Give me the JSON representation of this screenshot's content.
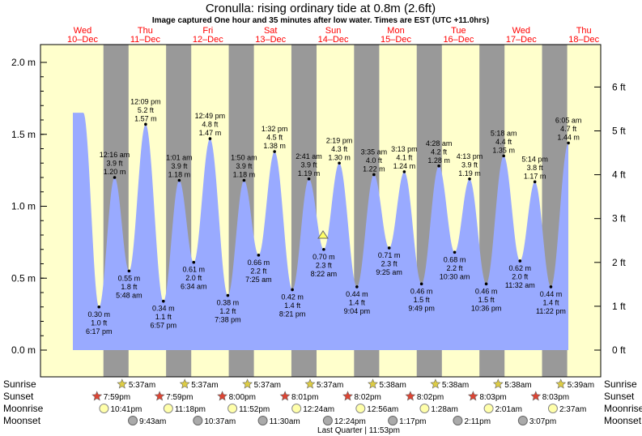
{
  "title": "Cronulla: rising  ordinary tide at 0.8m (2.6ft)",
  "subtitle": "Image captured One hour and 35 minutes after low water. Times are EST (UTC +11.0hrs)",
  "days": [
    {
      "name": "Wed",
      "date": "10–Dec"
    },
    {
      "name": "Thu",
      "date": "11–Dec"
    },
    {
      "name": "Fri",
      "date": "12–Dec"
    },
    {
      "name": "Sat",
      "date": "13–Dec"
    },
    {
      "name": "Sun",
      "date": "14–Dec"
    },
    {
      "name": "Mon",
      "date": "15–Dec"
    },
    {
      "name": "Tue",
      "date": "16–Dec"
    },
    {
      "name": "Wed",
      "date": "17–Dec"
    },
    {
      "name": "Thu",
      "date": "18–Dec"
    }
  ],
  "colors": {
    "day_background": "#ffffcc",
    "night_band": "#999999",
    "water": "#99aaff",
    "day_label": "#ff0000",
    "current_marker": "#ffff66"
  },
  "chart_data": {
    "type": "area",
    "y_left_ticks": [
      "0.0 m",
      "0.5 m",
      "1.0 m",
      "1.5 m",
      "2.0 m"
    ],
    "y_left_values": [
      0,
      0.5,
      1.0,
      1.5,
      2.0
    ],
    "y_right_ticks": [
      "0 ft",
      "1 ft",
      "2 ft",
      "3 ft",
      "4 ft",
      "5 ft",
      "6 ft"
    ],
    "y_right_values_ft": [
      0,
      1,
      2,
      3,
      4,
      5,
      6
    ],
    "ylim_m": [
      -0.1,
      2.1
    ],
    "tide_events": [
      {
        "type": "low",
        "time": "6:17 pm",
        "day": "Wed 10-Dec",
        "m": 0.3,
        "ft": "1.0 ft",
        "label_m": "0.30 m"
      },
      {
        "type": "high",
        "time": "12:16 am",
        "day": "Thu 11-Dec",
        "m": 1.2,
        "ft": "3.9 ft",
        "label_m": "1.20 m"
      },
      {
        "type": "low",
        "time": "5:48 am",
        "day": "Thu 11-Dec",
        "m": 0.55,
        "ft": "1.8 ft",
        "label_m": "0.55 m"
      },
      {
        "type": "high",
        "time": "12:09 pm",
        "day": "Thu 11-Dec",
        "m": 1.57,
        "ft": "5.2 ft",
        "label_m": "1.57 m"
      },
      {
        "type": "low",
        "time": "6:57 pm",
        "day": "Thu 11-Dec",
        "m": 0.34,
        "ft": "1.1 ft",
        "label_m": "0.34 m"
      },
      {
        "type": "high",
        "time": "1:01 am",
        "day": "Fri 12-Dec",
        "m": 1.18,
        "ft": "3.9 ft",
        "label_m": "1.18 m"
      },
      {
        "type": "low",
        "time": "6:34 am",
        "day": "Fri 12-Dec",
        "m": 0.61,
        "ft": "2.0 ft",
        "label_m": "0.61 m"
      },
      {
        "type": "high",
        "time": "12:49 pm",
        "day": "Fri 12-Dec",
        "m": 1.47,
        "ft": "4.8 ft",
        "label_m": "1.47 m"
      },
      {
        "type": "low",
        "time": "7:38 pm",
        "day": "Fri 12-Dec",
        "m": 0.38,
        "ft": "1.2 ft",
        "label_m": "0.38 m"
      },
      {
        "type": "high",
        "time": "1:50 am",
        "day": "Sat 13-Dec",
        "m": 1.18,
        "ft": "3.9 ft",
        "label_m": "1.18 m"
      },
      {
        "type": "low",
        "time": "7:25 am",
        "day": "Sat 13-Dec",
        "m": 0.66,
        "ft": "2.2 ft",
        "label_m": "0.66 m"
      },
      {
        "type": "high",
        "time": "1:32 pm",
        "day": "Sat 13-Dec",
        "m": 1.38,
        "ft": "4.5 ft",
        "label_m": "1.38 m"
      },
      {
        "type": "low",
        "time": "8:21 pm",
        "day": "Sat 13-Dec",
        "m": 0.42,
        "ft": "1.4 ft",
        "label_m": "0.42 m"
      },
      {
        "type": "high",
        "time": "2:41 am",
        "day": "Sun 14-Dec",
        "m": 1.19,
        "ft": "3.9 ft",
        "label_m": "1.19 m"
      },
      {
        "type": "low",
        "time": "8:22 am",
        "day": "Sun 14-Dec",
        "m": 0.7,
        "ft": "2.3 ft",
        "label_m": "0.70 m"
      },
      {
        "type": "high",
        "time": "2:19 pm",
        "day": "Sun 14-Dec",
        "m": 1.3,
        "ft": "4.3 ft",
        "label_m": "1.30 m"
      },
      {
        "type": "low",
        "time": "9:04 pm",
        "day": "Sun 14-Dec",
        "m": 0.44,
        "ft": "1.4 ft",
        "label_m": "0.44 m"
      },
      {
        "type": "high",
        "time": "3:35 am",
        "day": "Mon 15-Dec",
        "m": 1.22,
        "ft": "4.0 ft",
        "label_m": "1.22 m"
      },
      {
        "type": "low",
        "time": "9:25 am",
        "day": "Mon 15-Dec",
        "m": 0.71,
        "ft": "2.3 ft",
        "label_m": "0.71 m"
      },
      {
        "type": "high",
        "time": "3:13 pm",
        "day": "Mon 15-Dec",
        "m": 1.24,
        "ft": "4.1 ft",
        "label_m": "1.24 m"
      },
      {
        "type": "low",
        "time": "9:49 pm",
        "day": "Mon 15-Dec",
        "m": 0.46,
        "ft": "1.5 ft",
        "label_m": "0.46 m"
      },
      {
        "type": "high",
        "time": "4:28 am",
        "day": "Tue 16-Dec",
        "m": 1.28,
        "ft": "4.2 ft",
        "label_m": "1.28 m"
      },
      {
        "type": "low",
        "time": "10:30 am",
        "day": "Tue 16-Dec",
        "m": 0.68,
        "ft": "2.2 ft",
        "label_m": "0.68 m"
      },
      {
        "type": "high",
        "time": "4:13 pm",
        "day": "Tue 16-Dec",
        "m": 1.19,
        "ft": "3.9 ft",
        "label_m": "1.19 m"
      },
      {
        "type": "low",
        "time": "10:36 pm",
        "day": "Tue 16-Dec",
        "m": 0.46,
        "ft": "1.5 ft",
        "label_m": "0.46 m"
      },
      {
        "type": "high",
        "time": "5:18 am",
        "day": "Wed 17-Dec",
        "m": 1.35,
        "ft": "4.4 ft",
        "label_m": "1.35 m"
      },
      {
        "type": "low",
        "time": "11:32 am",
        "day": "Wed 17-Dec",
        "m": 0.62,
        "ft": "2.0 ft",
        "label_m": "0.62 m"
      },
      {
        "type": "high",
        "time": "5:14 pm",
        "day": "Wed 17-Dec",
        "m": 1.17,
        "ft": "3.8 ft",
        "label_m": "1.17 m"
      },
      {
        "type": "low",
        "time": "11:22 pm",
        "day": "Wed 17-Dec",
        "m": 0.44,
        "ft": "1.4 ft",
        "label_m": "0.44 m"
      },
      {
        "type": "high",
        "time": "6:05 am",
        "day": "Thu 18-Dec",
        "m": 1.44,
        "ft": "4.7 ft",
        "label_m": "1.44 m"
      }
    ],
    "current_level_m": 0.8
  },
  "astro": {
    "row_labels": [
      "Sunrise",
      "Sunset",
      "Moonrise",
      "Moonset"
    ],
    "sunrise": [
      "5:37am",
      "5:37am",
      "5:37am",
      "5:37am",
      "5:38am",
      "5:38am",
      "5:38am",
      "5:39am"
    ],
    "sunset": [
      "7:59pm",
      "7:59pm",
      "8:00pm",
      "8:01pm",
      "8:02pm",
      "8:02pm",
      "8:03pm",
      "8:03pm"
    ],
    "moonrise": [
      "10:41pm",
      "11:18pm",
      "11:52pm",
      "12:24am",
      "12:56am",
      "1:28am",
      "2:01am",
      "2:37am"
    ],
    "moonset": [
      "9:43am",
      "10:37am",
      "11:30am",
      "12:24pm",
      "1:17pm",
      "2:11pm",
      "3:07pm"
    ],
    "phase_note": "Last Quarter | 11:53pm"
  }
}
